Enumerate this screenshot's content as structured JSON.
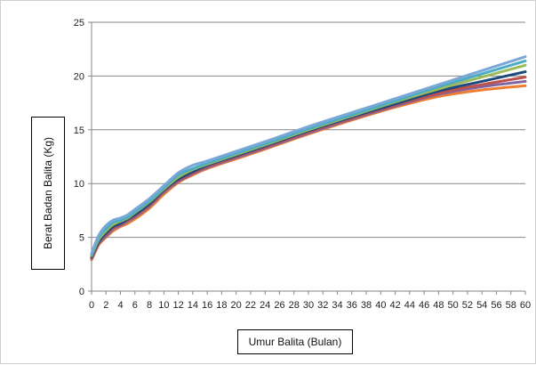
{
  "chart_data": {
    "type": "line",
    "title": "",
    "xlabel": "Umur Balita (Bulan)",
    "ylabel": "Berat Badan Balita (Kg)",
    "xlim": [
      0,
      60
    ],
    "ylim": [
      0,
      25
    ],
    "x_ticks": [
      "0",
      "2",
      "4",
      "6",
      "8",
      "10",
      "12",
      "14",
      "16",
      "18",
      "20",
      "22",
      "24",
      "26",
      "28",
      "30",
      "32",
      "34",
      "36",
      "38",
      "40",
      "42",
      "44",
      "46",
      "48",
      "50",
      "52",
      "54",
      "56",
      "58",
      "60"
    ],
    "y_ticks": [
      "0",
      "5",
      "10",
      "15",
      "20",
      "25"
    ],
    "grid": "horizontal",
    "x": [
      0,
      1,
      2,
      3,
      4,
      5,
      6,
      8,
      10,
      12,
      14,
      16,
      20,
      24,
      30,
      36,
      42,
      48,
      54,
      60
    ],
    "series": [
      {
        "color": "#ED7D31",
        "values": [
          2.9,
          4.3,
          5.0,
          5.6,
          6.0,
          6.3,
          6.7,
          7.7,
          9.0,
          10.1,
          10.8,
          11.4,
          12.3,
          13.2,
          14.6,
          15.9,
          17.1,
          18.1,
          18.7,
          19.1
        ]
      },
      {
        "color": "#8064A2",
        "values": [
          3.0,
          4.4,
          5.1,
          5.8,
          6.1,
          6.5,
          6.9,
          7.9,
          9.2,
          10.2,
          10.9,
          11.5,
          12.4,
          13.3,
          14.7,
          16.0,
          17.2,
          18.3,
          19.0,
          19.5
        ]
      },
      {
        "color": "#C0504D",
        "values": [
          3.1,
          4.5,
          5.3,
          5.9,
          6.2,
          6.6,
          7.0,
          8.0,
          9.3,
          10.3,
          11.0,
          11.6,
          12.5,
          13.4,
          14.8,
          16.1,
          17.3,
          18.4,
          19.2,
          19.9
        ]
      },
      {
        "color": "#1F497D",
        "values": [
          3.2,
          4.6,
          5.4,
          6.0,
          6.3,
          6.7,
          7.1,
          8.1,
          9.4,
          10.4,
          11.1,
          11.7,
          12.6,
          13.5,
          14.9,
          16.2,
          17.4,
          18.6,
          19.5,
          20.4
        ]
      },
      {
        "color": "#9BBB59",
        "values": [
          3.3,
          4.8,
          5.6,
          6.2,
          6.5,
          6.8,
          7.3,
          8.3,
          9.5,
          10.6,
          11.3,
          11.8,
          12.7,
          13.6,
          15.0,
          16.3,
          17.6,
          18.8,
          19.9,
          21.0
        ]
      },
      {
        "color": "#4BACC6",
        "values": [
          3.4,
          5.0,
          5.8,
          6.4,
          6.6,
          6.9,
          7.4,
          8.4,
          9.6,
          10.8,
          11.4,
          11.9,
          12.8,
          13.7,
          15.1,
          16.4,
          17.7,
          19.0,
          20.2,
          21.4
        ]
      },
      {
        "color": "#7BA7D7",
        "values": [
          3.5,
          5.2,
          6.1,
          6.6,
          6.8,
          7.1,
          7.6,
          8.6,
          9.8,
          11.0,
          11.7,
          12.1,
          13.0,
          13.9,
          15.3,
          16.6,
          17.9,
          19.2,
          20.5,
          21.8
        ]
      }
    ]
  }
}
